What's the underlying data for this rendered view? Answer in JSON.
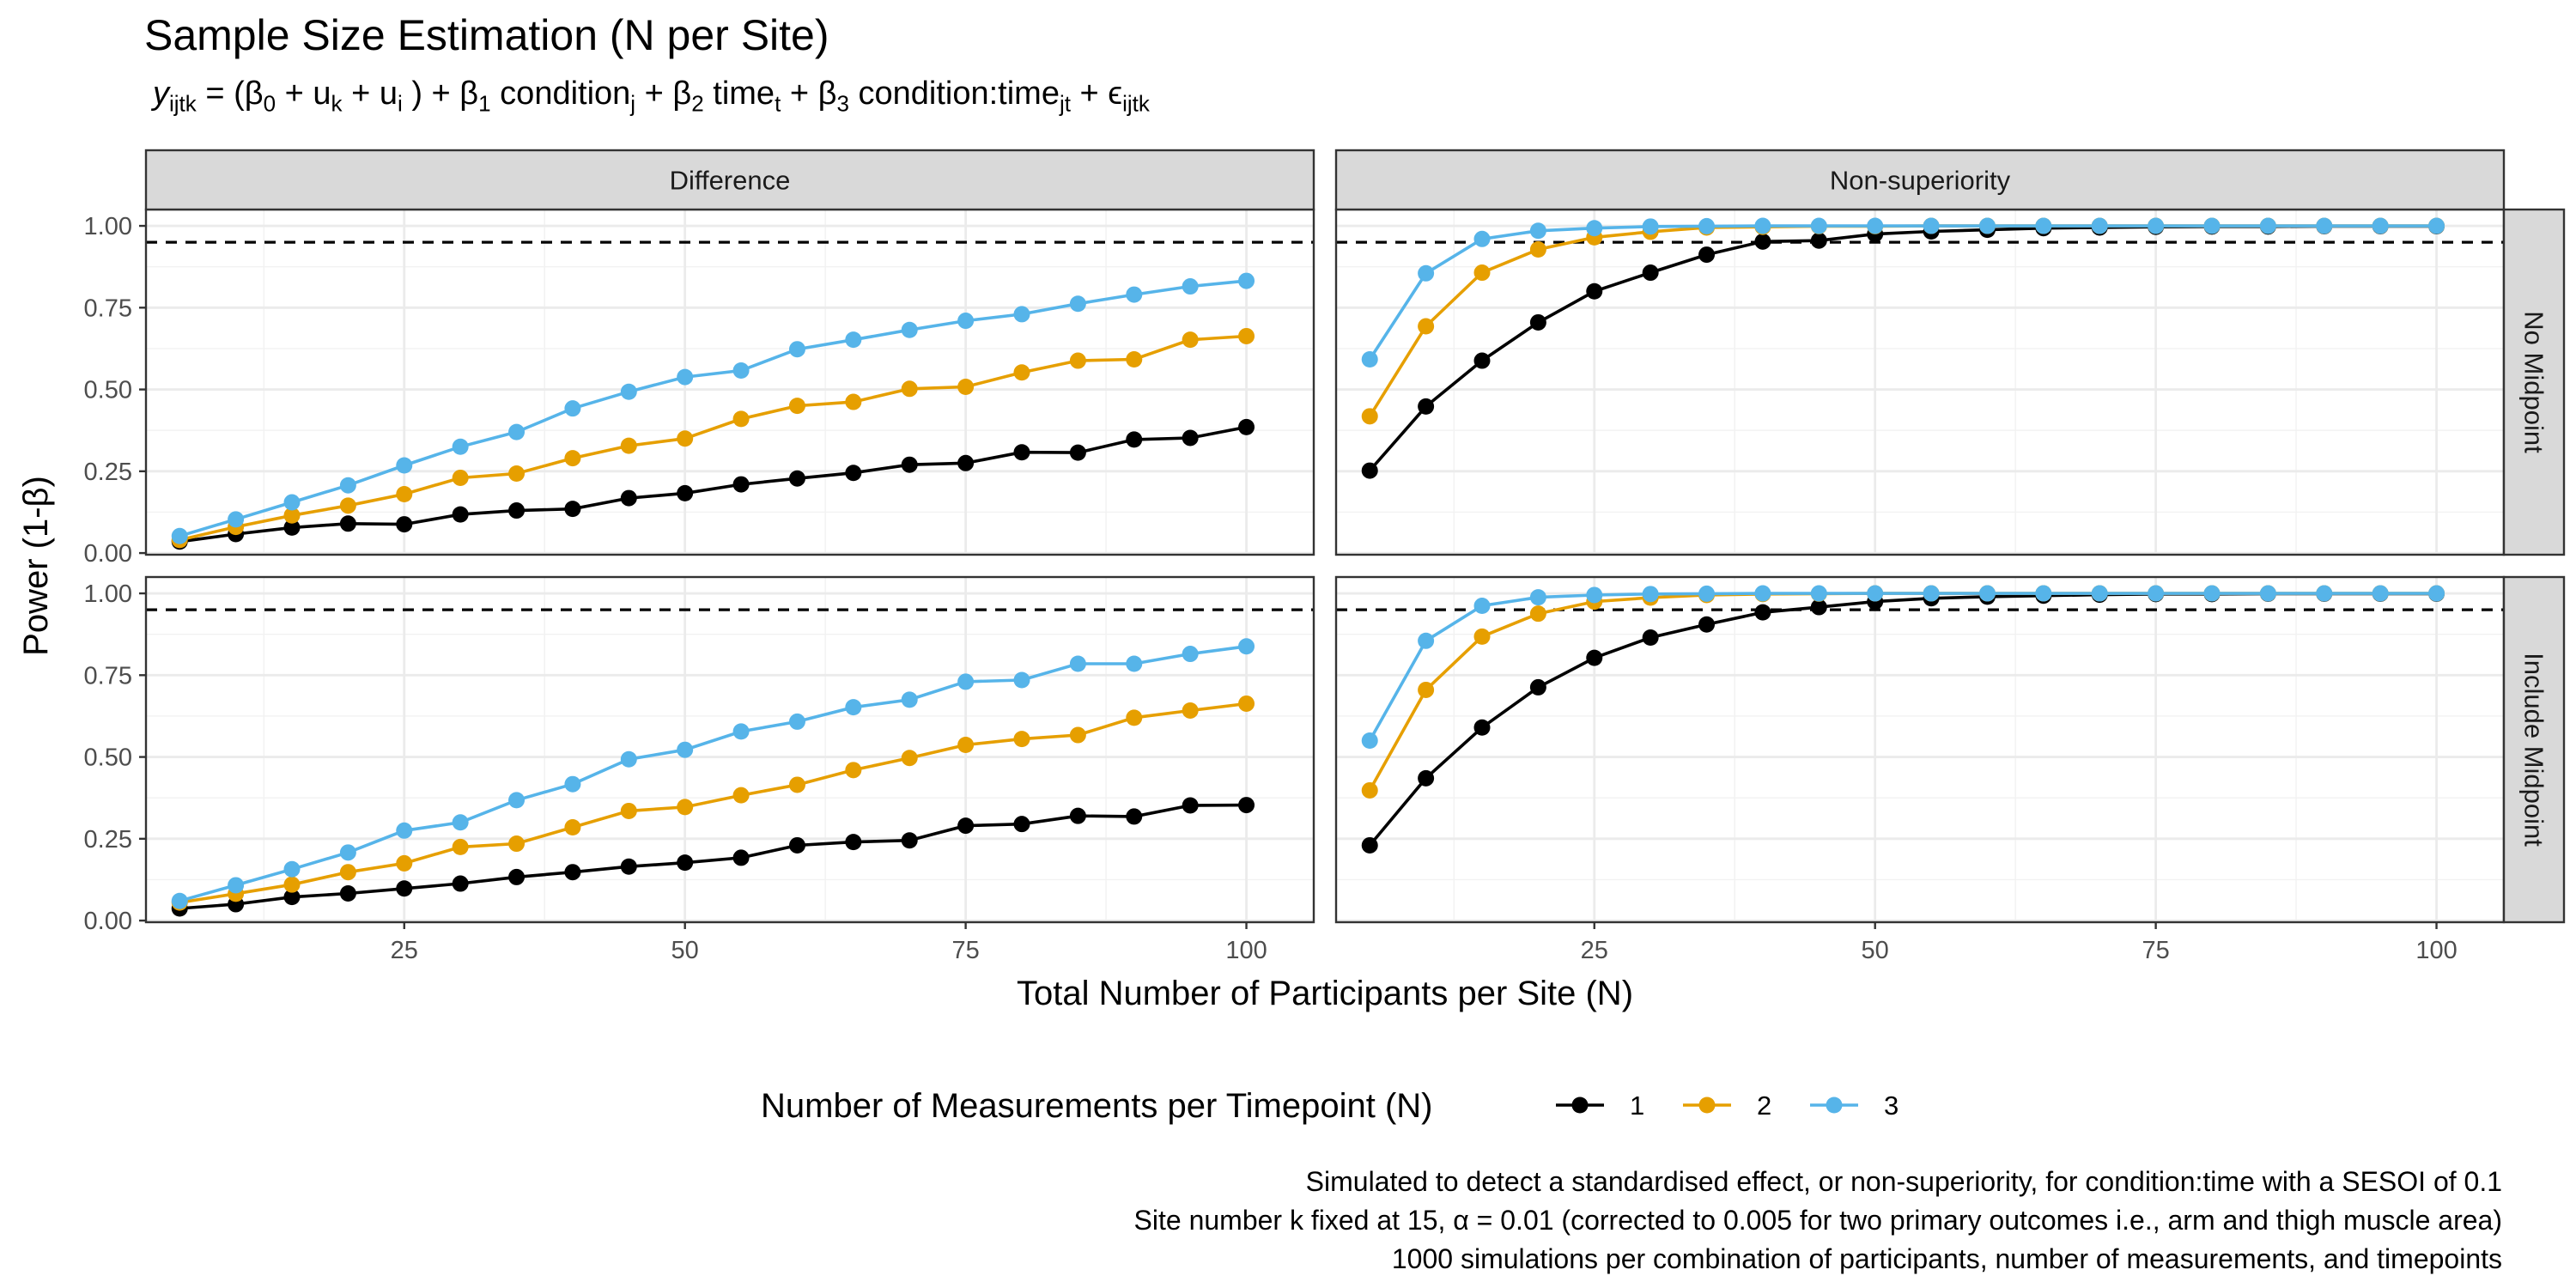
{
  "chart_data": {
    "type": "line",
    "title": "Sample Size Estimation (N per Site)",
    "subtitle_parts": {
      "y": "y",
      "y_sub": "ijtk",
      "eq_open": " = (β",
      "b0_sub": "0",
      "plus_uk": " +  u",
      "uk_sub": "k",
      "plus_ui": "  +  u",
      "ui_sub": "i",
      "close_b1": " ) + β",
      "b1_sub": "1",
      "cond": " condition",
      "cond_sub": "j",
      "plus_b2": "  + β",
      "b2_sub": "2",
      "time": " time",
      "time_sub": "t",
      "plus_b3": "  + β",
      "b3_sub": "3",
      "condtime": " condition:time",
      "condtime_sub": "jt",
      "plus_eps": "  + ϵ",
      "eps_sub": "ijtk"
    },
    "xlabel": "Total Number of Participants per Site (N)",
    "ylabel": "Power (1-β)",
    "xlim": [
      2,
      106
    ],
    "ylim": [
      -0.005,
      1.05
    ],
    "x_ticks": [
      25,
      50,
      75,
      100
    ],
    "x_tick_labels": [
      "25",
      "50",
      "75",
      "100"
    ],
    "y_ticks": [
      0,
      0.25,
      0.5,
      0.75,
      1
    ],
    "y_tick_labels": [
      "0.00",
      "0.25",
      "0.50",
      "0.75",
      "1.00"
    ],
    "reference_line": 0.95,
    "grid": true,
    "legend_title": "Number of Measurements per Timepoint (N)",
    "legend_position": "bottom",
    "legend_entries": [
      "1",
      "2",
      "3"
    ],
    "colors": {
      "1": "#000000",
      "2": "#E69F00",
      "3": "#56B4E9"
    },
    "columns": [
      "Difference",
      "Non-superiority"
    ],
    "rows": [
      "No Midpoint",
      "Include Midpoint"
    ],
    "x": [
      5,
      10,
      15,
      20,
      25,
      30,
      35,
      40,
      45,
      50,
      55,
      60,
      65,
      70,
      75,
      80,
      85,
      90,
      95,
      100
    ],
    "panels": [
      {
        "column": "Difference",
        "row": "No Midpoint",
        "series": [
          {
            "name": "1",
            "values": [
              0.035,
              0.058,
              0.078,
              0.09,
              0.088,
              0.118,
              0.13,
              0.135,
              0.168,
              0.183,
              0.21,
              0.228,
              0.245,
              0.27,
              0.275,
              0.308,
              0.307,
              0.347,
              0.352,
              0.385
            ]
          },
          {
            "name": "2",
            "values": [
              0.04,
              0.08,
              0.115,
              0.145,
              0.18,
              0.23,
              0.243,
              0.29,
              0.328,
              0.35,
              0.41,
              0.45,
              0.462,
              0.502,
              0.508,
              0.552,
              0.588,
              0.592,
              0.652,
              0.663
            ]
          },
          {
            "name": "3",
            "values": [
              0.052,
              0.103,
              0.155,
              0.207,
              0.268,
              0.325,
              0.37,
              0.442,
              0.493,
              0.538,
              0.558,
              0.623,
              0.652,
              0.682,
              0.71,
              0.73,
              0.762,
              0.79,
              0.815,
              0.832
            ]
          }
        ]
      },
      {
        "column": "Non-superiority",
        "row": "No Midpoint",
        "series": [
          {
            "name": "1",
            "values": [
              0.252,
              0.448,
              0.588,
              0.705,
              0.8,
              0.857,
              0.912,
              0.952,
              0.955,
              0.975,
              0.983,
              0.988,
              0.993,
              0.995,
              0.997,
              0.998,
              0.998,
              0.999,
              0.999,
              0.999
            ]
          },
          {
            "name": "2",
            "values": [
              0.418,
              0.693,
              0.857,
              0.928,
              0.965,
              0.982,
              0.995,
              0.997,
              0.999,
              0.999,
              1.0,
              1.0,
              1.0,
              1.0,
              1.0,
              1.0,
              1.0,
              1.0,
              1.0,
              1.0
            ]
          },
          {
            "name": "3",
            "values": [
              0.592,
              0.855,
              0.96,
              0.985,
              0.993,
              0.998,
              0.999,
              1.0,
              1.0,
              1.0,
              1.0,
              1.0,
              1.0,
              1.0,
              1.0,
              1.0,
              1.0,
              1.0,
              1.0,
              1.0
            ]
          }
        ]
      },
      {
        "column": "Difference",
        "row": "Include Midpoint",
        "series": [
          {
            "name": "1",
            "values": [
              0.037,
              0.05,
              0.072,
              0.083,
              0.098,
              0.113,
              0.133,
              0.148,
              0.165,
              0.177,
              0.192,
              0.23,
              0.24,
              0.245,
              0.29,
              0.295,
              0.32,
              0.318,
              0.352,
              0.353
            ]
          },
          {
            "name": "2",
            "values": [
              0.055,
              0.082,
              0.11,
              0.148,
              0.175,
              0.225,
              0.235,
              0.285,
              0.335,
              0.347,
              0.383,
              0.415,
              0.46,
              0.497,
              0.537,
              0.555,
              0.567,
              0.62,
              0.642,
              0.663
            ]
          },
          {
            "name": "3",
            "values": [
              0.06,
              0.108,
              0.157,
              0.208,
              0.275,
              0.3,
              0.368,
              0.417,
              0.493,
              0.522,
              0.578,
              0.608,
              0.652,
              0.675,
              0.73,
              0.735,
              0.785,
              0.785,
              0.815,
              0.838
            ]
          }
        ]
      },
      {
        "column": "Non-superiority",
        "row": "Include Midpoint",
        "series": [
          {
            "name": "1",
            "values": [
              0.23,
              0.435,
              0.59,
              0.713,
              0.803,
              0.865,
              0.905,
              0.942,
              0.958,
              0.975,
              0.985,
              0.99,
              0.993,
              0.996,
              0.998,
              0.998,
              0.999,
              0.999,
              0.999,
              0.999
            ]
          },
          {
            "name": "2",
            "values": [
              0.398,
              0.705,
              0.868,
              0.938,
              0.975,
              0.987,
              0.995,
              0.998,
              0.999,
              1.0,
              1.0,
              1.0,
              1.0,
              1.0,
              1.0,
              1.0,
              1.0,
              1.0,
              1.0,
              1.0
            ]
          },
          {
            "name": "3",
            "values": [
              0.55,
              0.855,
              0.962,
              0.988,
              0.995,
              0.998,
              0.999,
              1.0,
              1.0,
              1.0,
              1.0,
              1.0,
              1.0,
              1.0,
              1.0,
              1.0,
              1.0,
              1.0,
              1.0,
              1.0
            ]
          }
        ]
      }
    ],
    "caption_lines": [
      "Simulated to detect a standardised effect, or non-superiority, for condition:time with a SESOI of 0.1",
      "Site number k fixed at 15, α = 0.01 (corrected to 0.005 for two primary outcomes i.e., arm and thigh muscle area)",
      "1000 simulations per combination of participants, number of measurements, and timepoints"
    ]
  }
}
